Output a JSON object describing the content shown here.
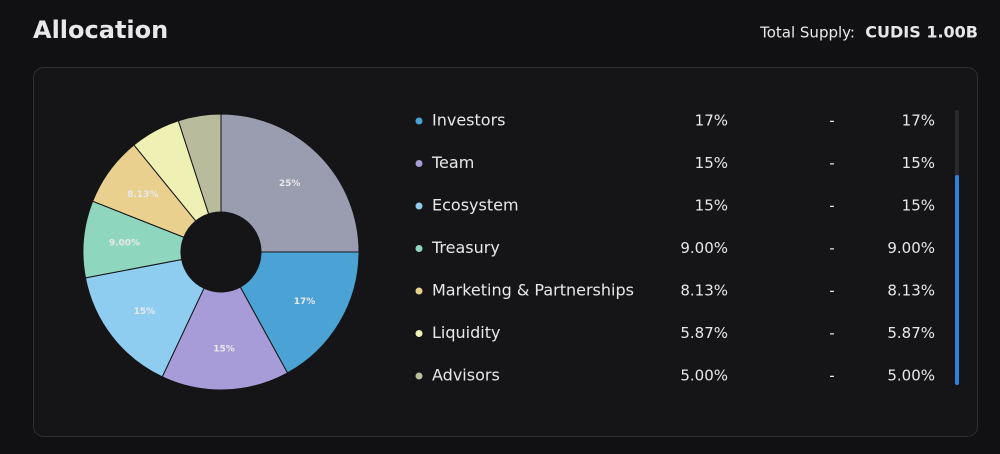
{
  "header": {
    "title": "Allocation",
    "supply_label": "Total Supply:",
    "supply_value": "CUDIS 1.00B"
  },
  "chart_data": {
    "type": "pie",
    "donut": true,
    "categories": [
      null,
      "Investors",
      "Team",
      "Ecosystem",
      "Treasury",
      "Marketing & Partnerships",
      "Liquidity",
      "Advisors"
    ],
    "values": [
      25,
      17,
      15,
      15,
      9.0,
      8.13,
      5.87,
      5.0
    ],
    "value_labels": [
      "25%",
      "17%",
      "15%",
      "15%",
      "9.00%",
      "8.13%",
      "5.87%",
      "5.00%"
    ],
    "colors": [
      "#9a9cb0",
      "#4aa3d4",
      "#a89cd8",
      "#8ecdf0",
      "#8fd6bf",
      "#e9d08f",
      "#eef1b3",
      "#b8bc9c"
    ],
    "separator": "-"
  }
}
